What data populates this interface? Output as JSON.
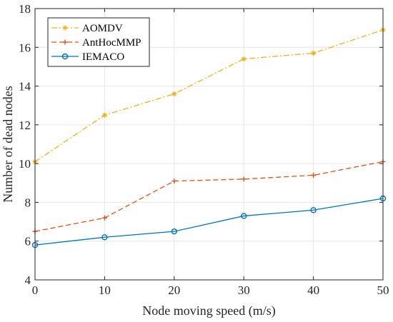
{
  "chart_data": {
    "type": "line",
    "title": "",
    "xlabel": "Node moving speed (m/s)",
    "ylabel": "Number of dead nodes",
    "xlim": [
      0,
      50
    ],
    "ylim": [
      4,
      18
    ],
    "x": [
      0,
      10,
      20,
      30,
      40,
      50
    ],
    "xticks": [
      "0",
      "10",
      "20",
      "30",
      "40",
      "50"
    ],
    "yticks": [
      "4",
      "6",
      "8",
      "10",
      "12",
      "14",
      "16",
      "18"
    ],
    "grid": true,
    "legend_position": "top-left",
    "series": [
      {
        "name": "AOMDV",
        "values": [
          10.1,
          12.5,
          13.6,
          15.4,
          15.7,
          16.9
        ],
        "color": "#EDB120",
        "line_style": "dash-dot",
        "marker": "asterisk"
      },
      {
        "name": "AntHocMMP",
        "values": [
          6.5,
          7.2,
          9.1,
          9.2,
          9.4,
          10.1
        ],
        "color": "#D95319",
        "line_style": "dashed",
        "marker": "plus"
      },
      {
        "name": "IEMACO",
        "values": [
          5.8,
          6.2,
          6.5,
          7.3,
          7.6,
          8.2
        ],
        "color": "#0072BD",
        "line_style": "solid",
        "marker": "circle"
      }
    ]
  }
}
